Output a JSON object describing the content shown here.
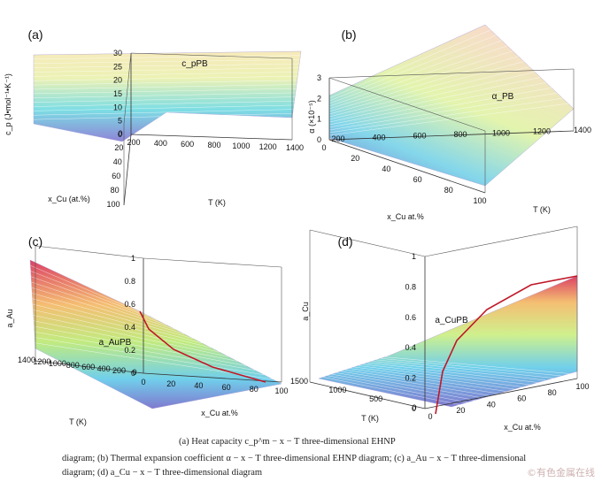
{
  "chart_data": [
    {
      "type": "surface",
      "panel_label": "(a)",
      "zlabel": "c_p (J•mol⁻¹•K⁻¹)",
      "xlabel": "x_Cu  (at.%)",
      "ylabel": "T  (K)",
      "x_ticks": [
        "0",
        "20",
        "40",
        "60",
        "80",
        "100"
      ],
      "y_ticks": [
        "200",
        "400",
        "600",
        "800",
        "1000",
        "1200",
        "1400"
      ],
      "z_ticks": [
        "0",
        "5",
        "10",
        "15",
        "20",
        "25",
        "30"
      ],
      "xlim": [
        0,
        100
      ],
      "ylim": [
        200,
        1400
      ],
      "zlim": [
        0,
        30
      ],
      "annotation": "c_pPB"
    },
    {
      "type": "surface",
      "panel_label": "(b)",
      "zlabel": "α (×10⁻⁵)",
      "xlabel": "x_Cu  at.%",
      "ylabel": "T  (K)",
      "x_ticks": [
        "0",
        "20",
        "40",
        "60",
        "80",
        "100"
      ],
      "y_ticks": [
        "200",
        "400",
        "600",
        "800",
        "1000",
        "1200",
        "1400"
      ],
      "z_ticks": [
        "0",
        "1",
        "2",
        "3"
      ],
      "xlim": [
        0,
        100
      ],
      "ylim": [
        200,
        1400
      ],
      "zlim": [
        0,
        3
      ],
      "annotation": "α_PB"
    },
    {
      "type": "surface",
      "panel_label": "(c)",
      "zlabel": "a_Au",
      "xlabel": "x_Cu  at.%",
      "ylabel": "T  (K)",
      "x_ticks": [
        "0",
        "20",
        "40",
        "60",
        "80",
        "100"
      ],
      "y_ticks": [
        "0",
        "200",
        "400",
        "600",
        "800",
        "1000",
        "1200",
        "1400"
      ],
      "z_ticks": [
        "0",
        "0.2",
        "0.4",
        "0.6",
        "0.8",
        "1"
      ],
      "xlim": [
        0,
        100
      ],
      "ylim": [
        0,
        1400
      ],
      "zlim": [
        0,
        1
      ],
      "annotation": "a_AuPB"
    },
    {
      "type": "surface",
      "panel_label": "(d)",
      "zlabel": "a_Cu",
      "xlabel": "x_Cu  at.%",
      "ylabel": "T  (K)",
      "x_ticks": [
        "0",
        "20",
        "40",
        "60",
        "80",
        "100"
      ],
      "y_ticks": [
        "0",
        "500",
        "1000",
        "1500"
      ],
      "z_ticks": [
        "0",
        "0.2",
        "0.4",
        "0.6",
        "0.8",
        "1"
      ],
      "xlim": [
        0,
        100
      ],
      "ylim": [
        0,
        1500
      ],
      "zlim": [
        0,
        1
      ],
      "annotation": "a_CuPB"
    }
  ],
  "caption": {
    "line1": "(a)  Heat capacity  c_p^m − x − T  three-dimensional  EHNP",
    "line2": "diagram;  (b)  Thermal  expansion  coefficient  α − x − T  three-dimensional  EHNP  diagram;  (c)  a_Au − x − T  three-dimensional",
    "line3": "diagram; (d)  a_Cu − x − T  three-dimensional diagram"
  },
  "watermark": "©有色金属在线"
}
